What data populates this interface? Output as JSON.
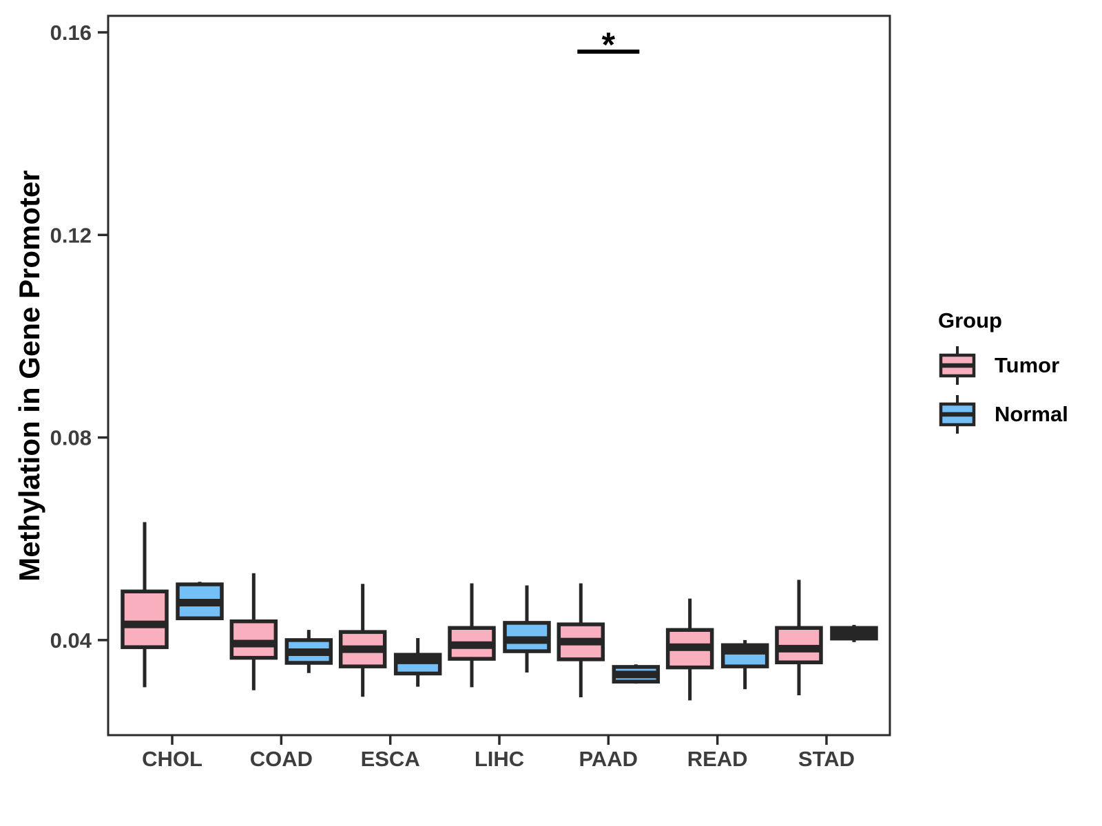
{
  "chart_data": {
    "type": "boxplot",
    "title": "",
    "xlabel": "",
    "ylabel": "Methylation in Gene Promoter",
    "categories": [
      "CHOL",
      "COAD",
      "ESCA",
      "LIHC",
      "PAAD",
      "READ",
      "STAD"
    ],
    "yticks": [
      0.04,
      0.08,
      0.12,
      0.16
    ],
    "ytick_labels": [
      "0.04",
      "0.08",
      "0.12",
      "0.16"
    ],
    "ylim": [
      0.021,
      0.163
    ],
    "grid": "off",
    "legend_title": "Group",
    "legend_position": "right",
    "series": [
      {
        "name": "Tumor",
        "color": "#FAAFBE",
        "stat_order": [
          "whisker_low",
          "q1",
          "median",
          "q3",
          "whisker_high"
        ],
        "boxes": [
          [
            0.0307,
            0.0386,
            0.0431,
            0.0496,
            0.0633
          ],
          [
            0.0301,
            0.0365,
            0.0393,
            0.0437,
            0.0532
          ],
          [
            0.0288,
            0.0348,
            0.0382,
            0.0416,
            0.0511
          ],
          [
            0.0307,
            0.0363,
            0.039,
            0.0424,
            0.0512
          ],
          [
            0.0287,
            0.0362,
            0.0397,
            0.0431,
            0.0512
          ],
          [
            0.0281,
            0.0346,
            0.0386,
            0.042,
            0.0482
          ],
          [
            0.0291,
            0.0356,
            0.0383,
            0.0424,
            0.0519
          ]
        ]
      },
      {
        "name": "Normal",
        "color": "#74BFF5",
        "stat_order": [
          "whisker_low",
          "q1",
          "median",
          "q3",
          "whisker_high"
        ],
        "boxes": [
          [
            0.044,
            0.0443,
            0.0474,
            0.051,
            0.0515
          ],
          [
            0.0335,
            0.0355,
            0.0376,
            0.04,
            0.042
          ],
          [
            0.0308,
            0.0334,
            0.036,
            0.0371,
            0.0404
          ],
          [
            0.0336,
            0.0378,
            0.04,
            0.0434,
            0.0508
          ],
          [
            0.0314,
            0.0318,
            0.0332,
            0.0347,
            0.0352
          ],
          [
            0.0303,
            0.0348,
            0.0379,
            0.039,
            0.04
          ],
          [
            0.0396,
            0.0403,
            0.0413,
            0.0424,
            0.043
          ]
        ]
      }
    ],
    "significance": [
      {
        "category": "PAAD",
        "label": "*",
        "bar_y": 0.1562
      }
    ],
    "colors": {
      "box_outline": "#262626",
      "panel_border": "#2B2B2B",
      "tick_text": "#3D3D3D",
      "annotation": "#000000"
    }
  }
}
